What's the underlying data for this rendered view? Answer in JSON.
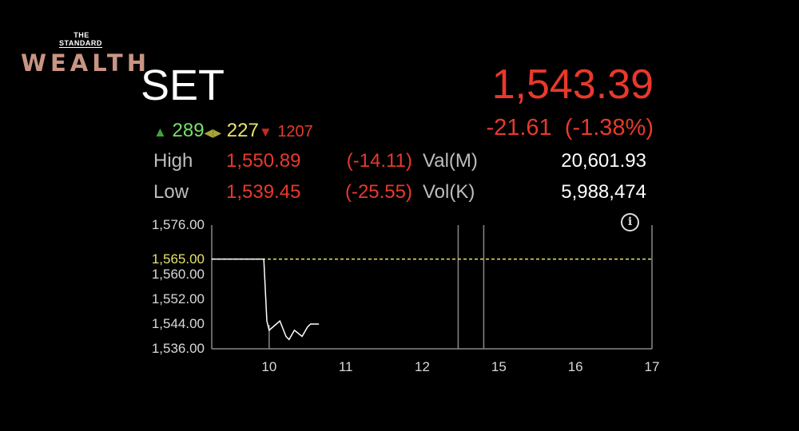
{
  "logo": {
    "line1": "THE",
    "line2": "STANDARD",
    "brand": "WEALTH"
  },
  "header": {
    "title": "SET",
    "price": "1,543.39",
    "change": "-21.61",
    "change_pct": "(-1.38%)"
  },
  "breadth": {
    "up": "289",
    "unchanged": "227",
    "down": "1207",
    "up_icon": "triangle-up-icon",
    "unchanged_icon": "diamond-arrows-icon",
    "down_icon": "triangle-down-icon"
  },
  "stats": {
    "high_label": "High",
    "high": "1,550.89",
    "high_chg": "(-14.11)",
    "low_label": "Low",
    "low": "1,539.45",
    "low_chg": "(-25.55)",
    "val_label": "Val(M)",
    "val": "20,601.93",
    "vol_label": "Vol(K)",
    "vol": "5,988,474"
  },
  "colors": {
    "up": "#77e06a",
    "unchanged": "#e8e46a",
    "down": "#e8392c",
    "prev_close": "#e8e46a",
    "line": "#ffffff"
  },
  "chart_data": {
    "type": "line",
    "ylim": [
      1536,
      1576
    ],
    "y_ticks": [
      "1,576.00",
      "1,560.00",
      "1,552.00",
      "1,544.00",
      "1,536.00"
    ],
    "y_tick_values": [
      1576,
      1560,
      1552,
      1544,
      1536
    ],
    "prev_close_label": "1,565.00",
    "prev_close": 1565,
    "x_ticks": [
      "10",
      "11",
      "12",
      "15",
      "16",
      "17"
    ],
    "x_tick_values": [
      10,
      11,
      12,
      15,
      16,
      17
    ],
    "sessions": [
      [
        9.25,
        12.5
      ],
      [
        14.5,
        17
      ]
    ],
    "grid": false,
    "info_icon": "info-icon",
    "series": [
      {
        "x": [
          9.25,
          9.93,
          9.97,
          10.0,
          10.14,
          10.22,
          10.26,
          10.33,
          10.43,
          10.5,
          10.54,
          10.65
        ],
        "y": [
          1565,
          1565,
          1545,
          1542,
          1545,
          1540,
          1539,
          1542,
          1540,
          1543,
          1544,
          1544
        ]
      }
    ]
  }
}
